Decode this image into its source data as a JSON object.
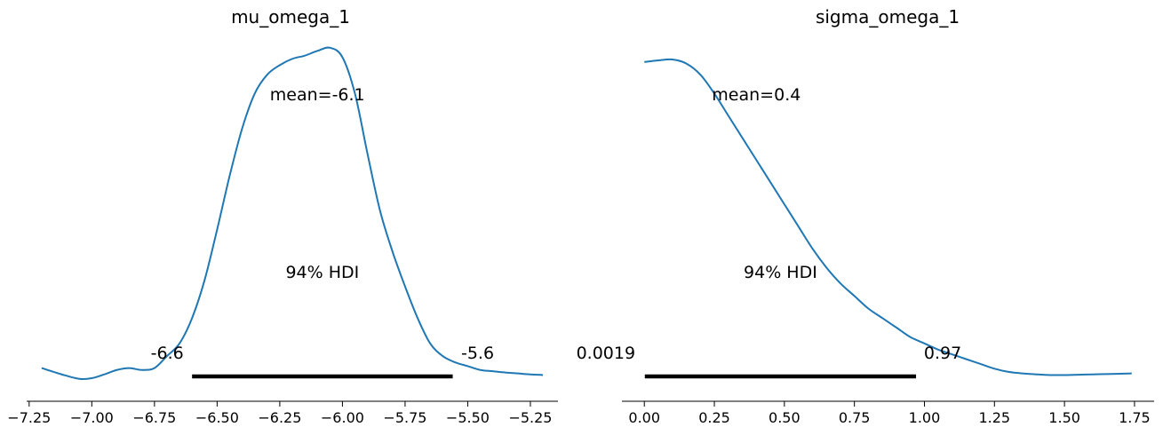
{
  "chart_data": [
    {
      "type": "line",
      "title": "mu_omega_1",
      "xlabel": "",
      "ylabel": "",
      "xlim": [
        -7.26,
        -5.14
      ],
      "ylim": [
        0,
        1.05
      ],
      "xticks": [
        -7.25,
        -7.0,
        -6.75,
        -6.5,
        -6.25,
        -6.0,
        -5.75,
        -5.5,
        -5.25
      ],
      "xtick_labels": [
        "−7.25",
        "−7.00",
        "−6.75",
        "−6.50",
        "−6.25",
        "−6.00",
        "−5.75",
        "−5.50",
        "−5.25"
      ],
      "series_color": "#1f77b4",
      "series": [
        {
          "x": [
            -7.2,
            -7.12,
            -7.05,
            -7.0,
            -6.95,
            -6.9,
            -6.85,
            -6.8,
            -6.75,
            -6.7,
            -6.65,
            -6.6,
            -6.55,
            -6.5,
            -6.45,
            -6.4,
            -6.35,
            -6.3,
            -6.25,
            -6.2,
            -6.15,
            -6.1,
            -6.05,
            -6.0,
            -5.95,
            -5.9,
            -5.85,
            -5.8,
            -5.75,
            -5.7,
            -5.65,
            -5.6,
            -5.55,
            -5.5,
            -5.45,
            -5.4,
            -5.35,
            -5.3,
            -5.25,
            -5.2
          ],
          "y": [
            0.032,
            0.012,
            -0.002,
            0.0,
            0.012,
            0.026,
            0.032,
            0.026,
            0.032,
            0.07,
            0.11,
            0.19,
            0.31,
            0.47,
            0.64,
            0.79,
            0.9,
            0.96,
            0.99,
            1.01,
            1.02,
            1.035,
            1.045,
            1.015,
            0.9,
            0.71,
            0.53,
            0.4,
            0.29,
            0.19,
            0.11,
            0.07,
            0.05,
            0.038,
            0.026,
            0.022,
            0.018,
            0.015,
            0.012,
            0.01
          ]
        }
      ],
      "annotations": {
        "mean_label": "mean=-6.1",
        "mean": -6.1,
        "hdi_label": "94% HDI",
        "hdi": [
          -6.6,
          -5.56
        ],
        "hdi_low_label": "-6.6",
        "hdi_high_label": "-5.6"
      }
    },
    {
      "type": "line",
      "title": "sigma_omega_1",
      "xlabel": "",
      "ylabel": "",
      "xlim": [
        -0.08,
        1.82
      ],
      "ylim": [
        0,
        1.05
      ],
      "xticks": [
        0.0,
        0.25,
        0.5,
        0.75,
        1.0,
        1.25,
        1.5,
        1.75
      ],
      "xtick_labels": [
        "0.00",
        "0.25",
        "0.50",
        "0.75",
        "1.00",
        "1.25",
        "1.50",
        "1.75"
      ],
      "series_color": "#1f77b4",
      "series": [
        {
          "x": [
            0.0,
            0.05,
            0.1,
            0.15,
            0.2,
            0.25,
            0.3,
            0.35,
            0.4,
            0.45,
            0.5,
            0.55,
            0.6,
            0.65,
            0.7,
            0.75,
            0.8,
            0.85,
            0.9,
            0.95,
            1.0,
            1.05,
            1.1,
            1.15,
            1.2,
            1.25,
            1.3,
            1.35,
            1.4,
            1.45,
            1.5,
            1.55,
            1.6,
            1.65,
            1.7,
            1.74
          ],
          "y": [
            1.0,
            1.005,
            1.008,
            0.995,
            0.96,
            0.9,
            0.83,
            0.76,
            0.69,
            0.62,
            0.55,
            0.48,
            0.41,
            0.35,
            0.3,
            0.26,
            0.22,
            0.19,
            0.16,
            0.13,
            0.11,
            0.09,
            0.075,
            0.06,
            0.045,
            0.03,
            0.02,
            0.015,
            0.012,
            0.01,
            0.01,
            0.011,
            0.012,
            0.013,
            0.014,
            0.015
          ]
        }
      ],
      "annotations": {
        "mean_label": "mean=0.4",
        "mean": 0.4,
        "hdi_label": "94% HDI",
        "hdi": [
          0.0019,
          0.97
        ],
        "hdi_low_label": "0.0019",
        "hdi_high_label": "0.97"
      }
    }
  ]
}
